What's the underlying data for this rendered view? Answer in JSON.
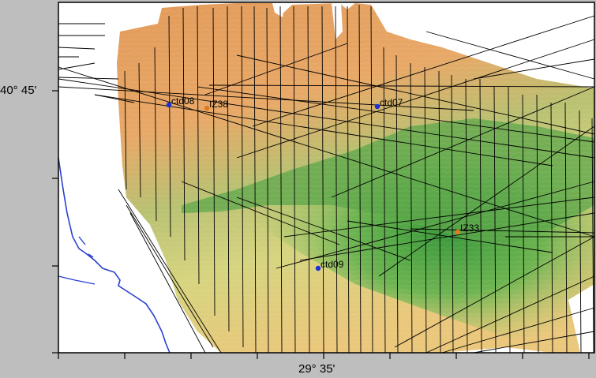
{
  "axes": {
    "lat_label": "40° 45'",
    "lon_label": "29° 35'"
  },
  "stations": [
    {
      "name": "ctd08",
      "type": "ctd",
      "color": "#1a2fd6"
    },
    {
      "name": "IZ38",
      "type": "iz",
      "color": "#e07a1e"
    },
    {
      "name": "ctd07",
      "type": "ctd",
      "color": "#1a2fd6"
    },
    {
      "name": "IZ33",
      "type": "iz",
      "color": "#e07a1e"
    },
    {
      "name": "ctd09",
      "type": "ctd",
      "color": "#1a2fd6"
    }
  ],
  "colors": {
    "frame_background": "#bebebe",
    "land": "#ffffff",
    "coastline": "#2a3fd0",
    "shallow": "#e9a363",
    "mid": "#d8c97a",
    "deep": "#4ea345",
    "track_lines": "#000000"
  }
}
